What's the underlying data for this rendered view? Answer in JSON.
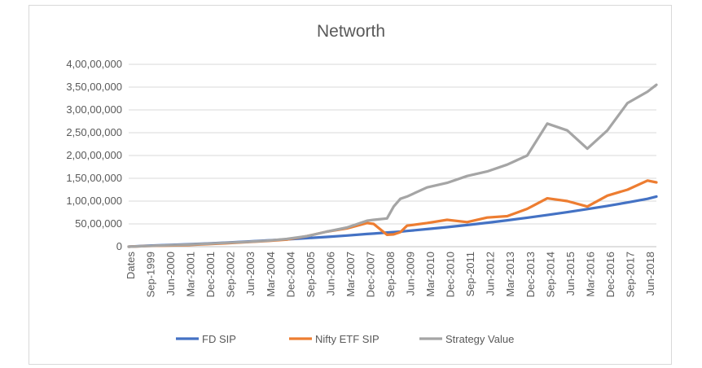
{
  "chart_data": {
    "type": "line",
    "title": "Networth",
    "xlabel": "",
    "ylabel": "",
    "ylim": [
      0,
      40000000
    ],
    "y_ticks": [
      0,
      5000000,
      10000000,
      15000000,
      20000000,
      25000000,
      30000000,
      35000000,
      40000000
    ],
    "y_tick_labels": [
      "0",
      "50,00,000",
      "1,00,00,000",
      "1,50,00,000",
      "2,00,00,000",
      "2,50,00,000",
      "3,00,00,000",
      "3,50,00,000",
      "4,00,00,000"
    ],
    "x_tick_labels": [
      "Dates",
      "Sep-1999",
      "Jun-2000",
      "Mar-2001",
      "Dec-2001",
      "Sep-2002",
      "Jun-2003",
      "Mar-2004",
      "Dec-2004",
      "Sep-2005",
      "Jun-2006",
      "Mar-2007",
      "Dec-2007",
      "Sep-2008",
      "Jun-2009",
      "Mar-2010",
      "Dec-2010",
      "Sep-2011",
      "Jun-2012",
      "Mar-2013",
      "Dec-2013",
      "Sep-2014",
      "Jun-2015",
      "Mar-2016",
      "Dec-2016",
      "Sep-2017",
      "Jun-2018"
    ],
    "grid": "horizontal",
    "legend_position": "bottom",
    "x": [
      "Jan-1999",
      "Sep-1999",
      "Jun-2000",
      "Mar-2001",
      "Dec-2001",
      "Sep-2002",
      "Jun-2003",
      "Mar-2004",
      "Dec-2004",
      "Sep-2005",
      "Jun-2006",
      "Mar-2007",
      "Dec-2007",
      "Mar-2008",
      "Sep-2008",
      "Dec-2008",
      "Mar-2009",
      "Jun-2009",
      "Mar-2010",
      "Dec-2010",
      "Sep-2011",
      "Jun-2012",
      "Mar-2013",
      "Dec-2013",
      "Sep-2014",
      "Jun-2015",
      "Mar-2016",
      "Dec-2016",
      "Sep-2017",
      "Jun-2018",
      "Oct-2018"
    ],
    "series": [
      {
        "name": "FD SIP",
        "color": "#4472c4",
        "values": [
          0,
          200000,
          350000,
          520000,
          700000,
          900000,
          1120000,
          1350000,
          1600000,
          1870000,
          2150000,
          2450000,
          2780000,
          2880000,
          3100000,
          3200000,
          3300000,
          3450000,
          3850000,
          4280000,
          4750000,
          5250000,
          5780000,
          6350000,
          6950000,
          7580000,
          8250000,
          8950000,
          9700000,
          10500000,
          11000000
        ]
      },
      {
        "name": "Nifty ETF SIP",
        "color": "#ed7d31",
        "values": [
          0,
          150000,
          250000,
          350000,
          550000,
          750000,
          1000000,
          1250000,
          1550000,
          2300000,
          3300000,
          4000000,
          5200000,
          5000000,
          2600000,
          2700000,
          3200000,
          4600000,
          5200000,
          5900000,
          5400000,
          6400000,
          6700000,
          8300000,
          10600000,
          10000000,
          8800000,
          11200000,
          12500000,
          14500000,
          14100000
        ]
      },
      {
        "name": "Strategy Value",
        "color": "#a5a5a5",
        "values": [
          0,
          150000,
          300000,
          450000,
          650000,
          850000,
          1050000,
          1300000,
          1700000,
          2300000,
          3300000,
          4200000,
          5700000,
          5900000,
          6200000,
          8800000,
          10500000,
          11000000,
          13000000,
          14000000,
          15500000,
          16500000,
          18000000,
          20000000,
          27000000,
          25500000,
          21500000,
          25500000,
          31500000,
          34000000,
          35500000
        ]
      }
    ]
  }
}
